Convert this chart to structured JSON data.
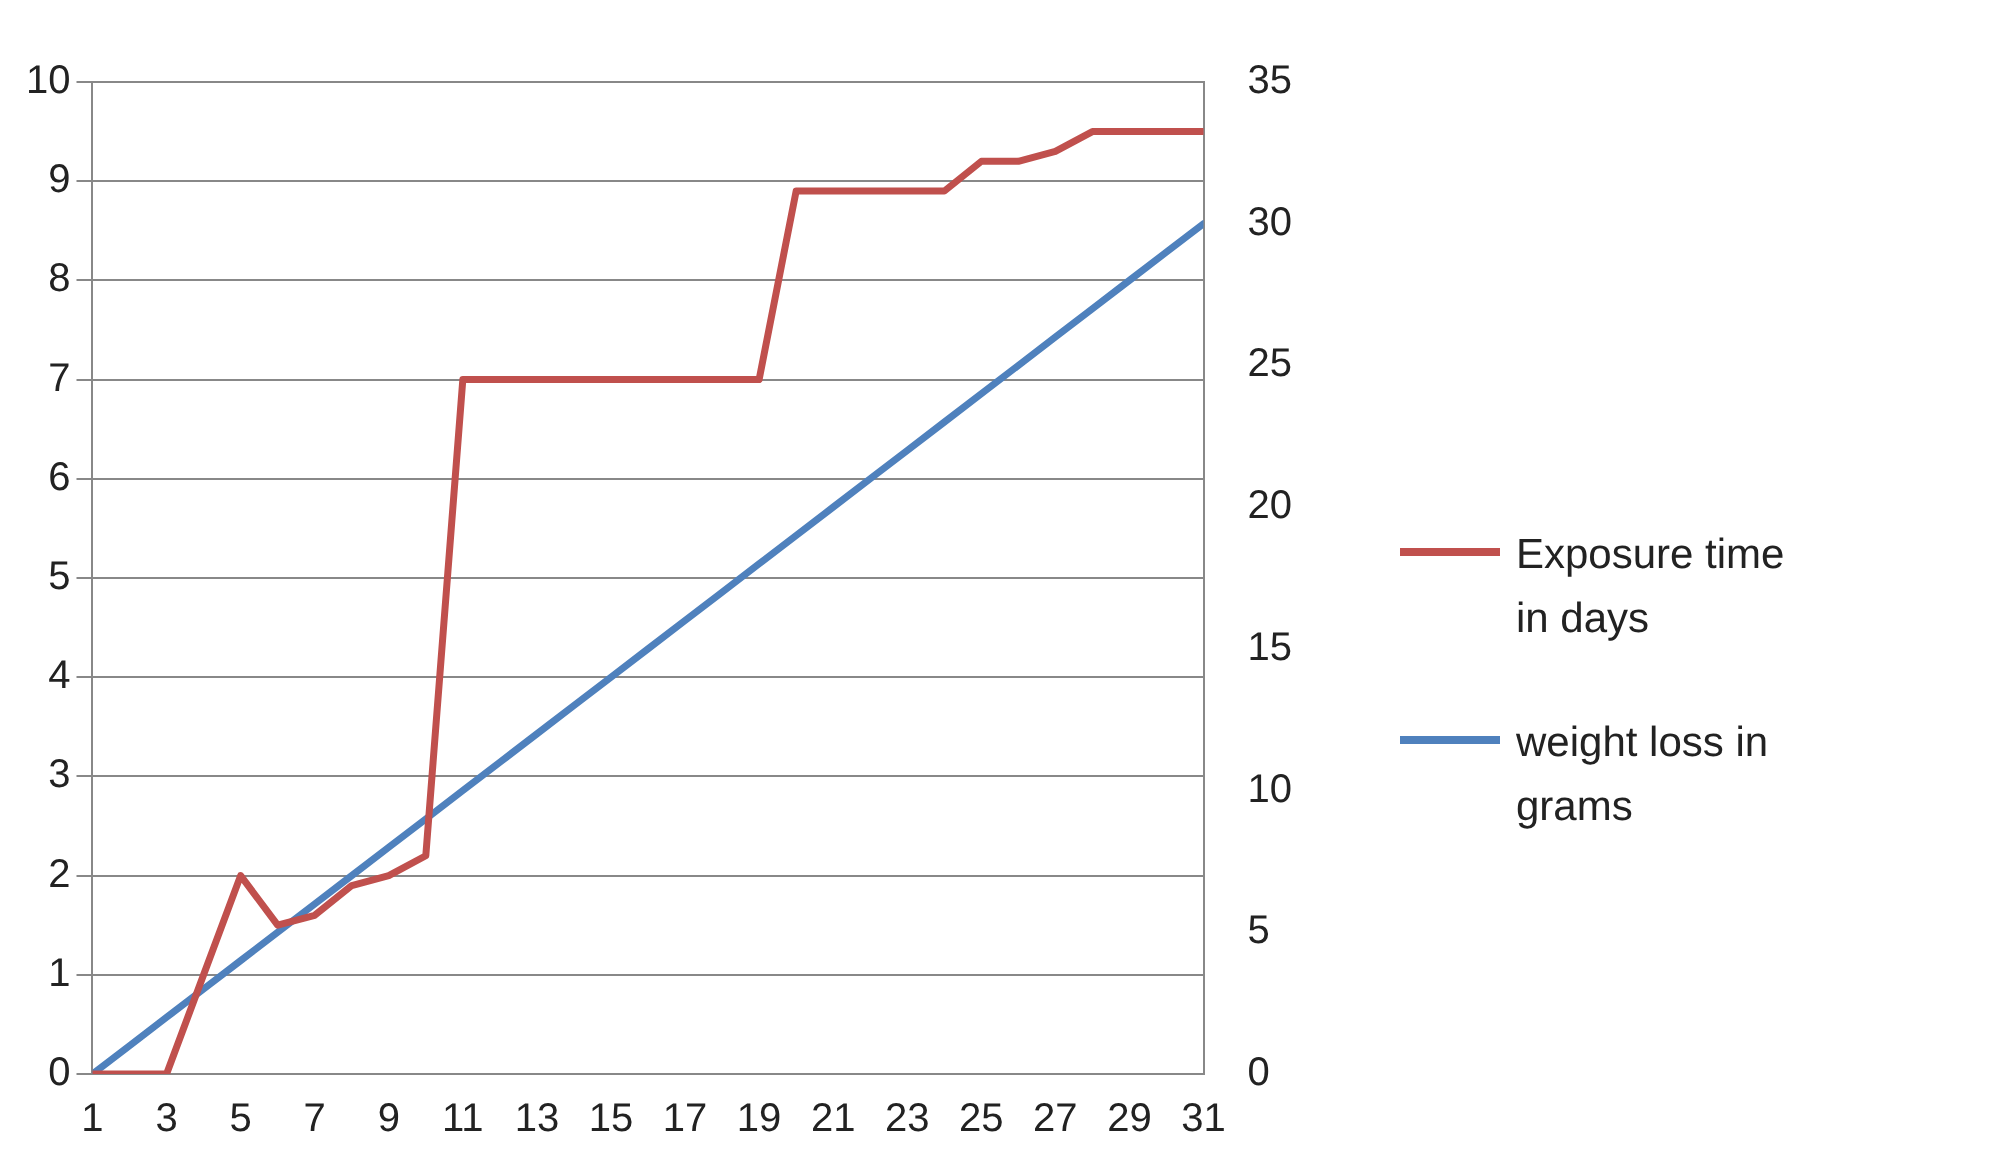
{
  "chart_data": {
    "type": "line",
    "x": [
      1,
      2,
      3,
      4,
      5,
      6,
      7,
      8,
      9,
      10,
      11,
      12,
      13,
      14,
      15,
      16,
      17,
      18,
      19,
      20,
      21,
      22,
      23,
      24,
      25,
      26,
      27,
      28,
      29,
      30,
      31
    ],
    "xlim": [
      1,
      31
    ],
    "xticks": [
      1,
      3,
      5,
      7,
      9,
      11,
      13,
      15,
      17,
      19,
      21,
      23,
      25,
      27,
      29,
      31
    ],
    "series": [
      {
        "name": "Exposure time in days",
        "color": "#c0504d",
        "values": [
          0,
          0,
          0,
          1,
          2,
          1.5,
          1.6,
          1.9,
          2,
          2.2,
          7,
          7,
          7,
          7,
          7,
          7,
          7,
          7,
          7,
          8.9,
          8.9,
          8.9,
          8.9,
          8.9,
          9.2,
          9.2,
          9.3,
          9.5,
          9.5,
          9.5,
          9.5
        ]
      },
      {
        "name": "weight loss in grams",
        "color": "#4f81bd",
        "axis": "y2",
        "values": [
          0,
          1,
          2,
          3,
          4,
          5,
          6,
          7,
          8,
          9,
          10,
          11,
          12,
          13,
          14,
          15,
          16,
          17,
          18,
          19,
          20,
          21,
          22,
          23,
          24,
          25,
          26,
          27,
          28,
          29,
          30
        ]
      }
    ],
    "ylim": [
      0,
      10
    ],
    "yticks": [
      0,
      1,
      2,
      3,
      4,
      5,
      6,
      7,
      8,
      9,
      10
    ],
    "y2lim": [
      0,
      35
    ],
    "y2ticks": [
      0,
      5,
      10,
      15,
      20,
      25,
      30,
      35
    ],
    "grid": "y",
    "legend": "right",
    "marker": "none",
    "line_style": "solid"
  }
}
